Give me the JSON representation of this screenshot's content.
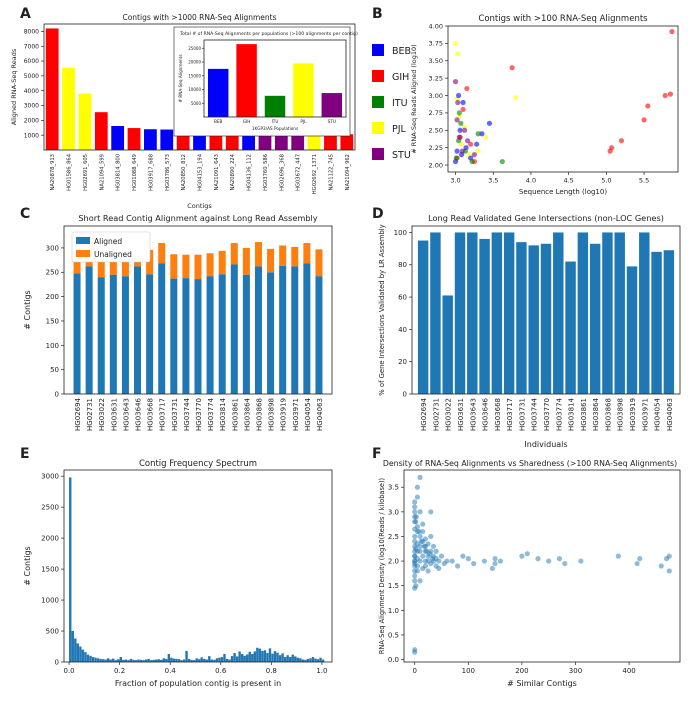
{
  "colors": {
    "BEB": "#0000ff",
    "GIH": "#ff0000",
    "ITU": "#008000",
    "PJL": "#ffff00",
    "STU": "#800080",
    "aligned": "#1f77b4",
    "unaligned": "#ff7f0e"
  },
  "chart_data": [
    {
      "panel": "A",
      "type": "bar",
      "title": "Contigs with >1000 RNA-Seq Alignments",
      "xlabel": "Contigs",
      "ylabel": "Aligned RNA-Seq Reads",
      "ylim": [
        0,
        8500
      ],
      "yticks": [
        1000,
        2000,
        3000,
        4000,
        5000,
        6000,
        7000,
        8000
      ],
      "categories": [
        "NA20878_913",
        "HG01586_864",
        "HG02691_605",
        "NA21094_599",
        "HG03814_800",
        "HG01088_649",
        "HG03917_688",
        "HG03786_573",
        "NA20850_812",
        "HG04153_194",
        "NA21091_643",
        "NA20890_224",
        "HG04136_112",
        "HG03760_586",
        "HG02696_368",
        "HG03672_447",
        "HG02692_1371",
        "NA21122_745",
        "NA21094_962"
      ],
      "values": [
        8200,
        5550,
        3800,
        2550,
        1620,
        1480,
        1400,
        1380,
        1220,
        1200,
        1190,
        1180,
        1170,
        1160,
        1150,
        1140,
        1100,
        1080,
        1060
      ],
      "bar_groups": [
        "GIH",
        "PJL",
        "PJL",
        "GIH",
        "BEB",
        "GIH",
        "BEB",
        "BEB",
        "GIH",
        "BEB",
        "GIH",
        "GIH",
        "BEB",
        "STU",
        "STU",
        "STU",
        "PJL",
        "GIH",
        "GIH"
      ],
      "inset": {
        "title": "Total # of RNA-Seq Alignments per populations (>100 alignments per contig)",
        "xlabel": "1KGP3/AS Populations",
        "ylabel": "# RNA-Seq Alignments",
        "ylim": [
          0,
          28000
        ],
        "yticks": [
          5000,
          10000,
          15000,
          20000,
          25000
        ],
        "categories": [
          "BEB",
          "GIH",
          "ITU",
          "PJL",
          "STU"
        ],
        "values": [
          17500,
          26500,
          7700,
          19500,
          8700
        ]
      },
      "legend": {
        "entries": [
          "BEB",
          "GIH",
          "ITU",
          "PJL",
          "STU"
        ]
      }
    },
    {
      "panel": "B",
      "type": "scatter",
      "title": "Contigs with >100 RNA-Seq Alignments",
      "xlabel": "Sequence Length (log10)",
      "ylabel": "# RNA-Seq Reads Aligned (log10)",
      "xlim": [
        2.9,
        5.95
      ],
      "ylim": [
        1.9,
        4.0
      ],
      "xticks": [
        3.0,
        3.5,
        4.0,
        4.5,
        5.0,
        5.5
      ],
      "yticks": [
        2.0,
        2.25,
        2.5,
        2.75,
        3.0,
        3.25,
        3.5,
        3.75,
        4.0
      ],
      "series": [
        {
          "name": "GIH",
          "x": [
            3.02,
            3.05,
            3.1,
            3.15,
            3.2,
            3.25,
            3.75,
            5.05,
            5.07,
            5.2,
            5.5,
            5.55,
            5.78,
            5.85,
            5.87
          ],
          "y": [
            2.1,
            2.4,
            2.8,
            3.1,
            2.3,
            2.05,
            3.4,
            2.2,
            2.25,
            2.35,
            2.65,
            2.85,
            3.0,
            3.02,
            3.92
          ]
        },
        {
          "name": "PJL",
          "x": [
            3.0,
            3.03,
            3.08,
            3.12,
            3.18,
            3.3,
            3.4,
            3.8,
            3.02,
            3.05
          ],
          "y": [
            3.75,
            3.6,
            2.3,
            2.55,
            2.15,
            2.2,
            2.4,
            2.97,
            2.95,
            2.7
          ]
        },
        {
          "name": "BEB",
          "x": [
            3.0,
            3.02,
            3.06,
            3.1,
            3.14,
            3.2,
            3.28,
            3.35,
            3.45,
            3.04,
            3.08
          ],
          "y": [
            2.05,
            2.2,
            2.5,
            2.9,
            2.25,
            2.1,
            2.3,
            2.45,
            2.6,
            3.0,
            2.15
          ]
        },
        {
          "name": "ITU",
          "x": [
            3.01,
            3.04,
            3.07,
            3.13,
            3.22,
            3.3,
            3.62,
            3.05
          ],
          "y": [
            2.1,
            2.35,
            2.6,
            2.2,
            2.05,
            2.45,
            2.05,
            2.75
          ]
        },
        {
          "name": "STU",
          "x": [
            3.0,
            3.03,
            3.06,
            3.09,
            3.16,
            3.25,
            3.02,
            3.12
          ],
          "y": [
            3.2,
            2.9,
            2.4,
            2.2,
            2.35,
            2.15,
            2.65,
            2.5
          ]
        }
      ]
    },
    {
      "panel": "C",
      "type": "bar",
      "title": "Short Read Contig Alignment against Long Read Assembly",
      "ylabel": "# Contigs",
      "ylim": [
        0,
        345
      ],
      "yticks": [
        0,
        50,
        100,
        150,
        200,
        250,
        300
      ],
      "categories": [
        "HG02694",
        "HG02731",
        "HG03022",
        "HG03631",
        "HG03643",
        "HG03646",
        "HG03668",
        "HG03717",
        "HG03731",
        "HG03744",
        "HG03770",
        "HG03774",
        "HG03814",
        "HG03861",
        "HG03864",
        "HG03868",
        "HG03898",
        "HG03919",
        "HG03971",
        "HG04054",
        "HG04063"
      ],
      "series": [
        {
          "name": "Aligned",
          "values": [
            248,
            262,
            240,
            245,
            242,
            262,
            246,
            268,
            237,
            238,
            236,
            242,
            246,
            266,
            245,
            262,
            250,
            263,
            262,
            268,
            242
          ]
        },
        {
          "name": "Unaligned",
          "values": [
            47,
            52,
            58,
            50,
            54,
            48,
            50,
            42,
            50,
            48,
            50,
            47,
            48,
            44,
            55,
            50,
            48,
            42,
            40,
            42,
            55
          ]
        }
      ],
      "legend": {
        "entries": [
          "Aligned",
          "Unaligned"
        ],
        "placement": "top-left"
      }
    },
    {
      "panel": "D",
      "type": "bar",
      "title": "Long Read Validated Gene Intersections (non-LOC Genes)",
      "xlabel": "Individuals",
      "ylabel": "% of Gene Intersections Validated by LR Assembly",
      "ylim": [
        0,
        104
      ],
      "yticks": [
        0,
        20,
        40,
        60,
        80,
        100
      ],
      "categories": [
        "HG02694",
        "HG02731",
        "HG03022",
        "HG03631",
        "HG03643",
        "HG03646",
        "HG03668",
        "HG03717",
        "HG03731",
        "HG03744",
        "HG03770",
        "HG03774",
        "HG03814",
        "HG03861",
        "HG03864",
        "HG03868",
        "HG03898",
        "HG03919",
        "HG03971",
        "HG04054",
        "HG04063"
      ],
      "values": [
        95,
        100,
        61,
        100,
        100,
        96,
        100,
        100,
        94,
        92,
        93,
        100,
        82,
        100,
        93,
        100,
        100,
        79,
        100,
        88,
        89
      ]
    },
    {
      "panel": "E",
      "type": "bar",
      "title": "Contig Frequency Spectrum",
      "xlabel": "Fraction of population contig is present in",
      "ylabel": "# Contigs",
      "xlim": [
        -0.02,
        1.04
      ],
      "ylim": [
        0,
        3100
      ],
      "xticks": [
        0.0,
        0.2,
        0.4,
        0.6,
        0.8,
        1.0
      ],
      "yticks": [
        0,
        500,
        1000,
        1500,
        2000,
        2500,
        3000
      ],
      "bin_width": 0.01,
      "values": [
        2980,
        500,
        380,
        300,
        250,
        200,
        160,
        120,
        100,
        80,
        70,
        60,
        50,
        45,
        40,
        60,
        40,
        55,
        30,
        45,
        80,
        35,
        40,
        30,
        50,
        35,
        30,
        40,
        35,
        30,
        40,
        50,
        30,
        35,
        40,
        45,
        35,
        60,
        50,
        130,
        70,
        55,
        50,
        45,
        30,
        40,
        180,
        50,
        35,
        30,
        60,
        45,
        75,
        50,
        40,
        95,
        40,
        35,
        60,
        70,
        80,
        130,
        50,
        40,
        95,
        145,
        90,
        170,
        130,
        100,
        120,
        165,
        130,
        170,
        230,
        215,
        180,
        190,
        145,
        220,
        135,
        175,
        150,
        110,
        140,
        80,
        110,
        80,
        120,
        90,
        70,
        60,
        40,
        35,
        50,
        60,
        80,
        55,
        45,
        70,
        40
      ]
    },
    {
      "panel": "F",
      "type": "scatter",
      "title": "Density of RNA-Seq Alignments vs Sharedness (>100 RNA-Seq Alignments)",
      "xlabel": "# Similar Contigs",
      "ylabel": "RNA-Seq Alignment Density (log10(Reads / kilobase))",
      "xlim": [
        -20,
        495
      ],
      "ylim": [
        -0.05,
        3.85
      ],
      "xticks": [
        0,
        100,
        200,
        300,
        400
      ],
      "yticks": [
        0.0,
        0.5,
        1.0,
        1.5,
        2.0,
        2.5,
        3.0,
        3.5
      ],
      "x": [
        0,
        0,
        0,
        0,
        0,
        0,
        0,
        0,
        0,
        0,
        0,
        0,
        0,
        0,
        0,
        0,
        0,
        0,
        0,
        0,
        0,
        0,
        5,
        5,
        5,
        5,
        5,
        5,
        5,
        5,
        5,
        10,
        10,
        10,
        10,
        10,
        10,
        10,
        15,
        15,
        15,
        15,
        15,
        20,
        20,
        20,
        20,
        20,
        25,
        25,
        25,
        25,
        30,
        30,
        30,
        30,
        35,
        35,
        35,
        40,
        40,
        40,
        45,
        45,
        50,
        55,
        60,
        70,
        80,
        90,
        100,
        110,
        130,
        145,
        150,
        150,
        160,
        200,
        210,
        230,
        250,
        270,
        280,
        310,
        380,
        415,
        420,
        460,
        470,
        475,
        475,
        2,
        2,
        2,
        3,
        8,
        12,
        18,
        22,
        28,
        33
      ],
      "y": [
        0.15,
        0.2,
        1.45,
        1.6,
        1.8,
        1.9,
        2.0,
        2.1,
        2.2,
        2.3,
        2.5,
        2.65,
        2.8,
        2.9,
        3.0,
        3.1,
        3.2,
        2.0,
        1.7,
        2.4,
        1.95,
        2.1,
        3.3,
        3.5,
        2.6,
        2.2,
        1.8,
        2.05,
        1.9,
        2.7,
        2.35,
        3.7,
        3.0,
        2.5,
        2.2,
        1.6,
        2.0,
        2.3,
        2.4,
        2.1,
        1.85,
        2.6,
        2.75,
        2.0,
        2.2,
        2.3,
        1.9,
        2.45,
        2.1,
        2.0,
        2.35,
        1.8,
        2.5,
        2.2,
        1.95,
        3.0,
        2.1,
        2.0,
        2.3,
        2.2,
        1.9,
        2.05,
        2.0,
        1.85,
        2.1,
        1.95,
        2.0,
        2.0,
        1.9,
        2.1,
        2.05,
        1.95,
        2.0,
        1.85,
        1.95,
        2.05,
        2.0,
        2.1,
        2.15,
        2.05,
        2.0,
        2.05,
        1.95,
        2.0,
        2.1,
        1.95,
        2.05,
        1.9,
        2.05,
        1.8,
        2.1,
        2.8,
        2.25,
        1.5,
        2.9,
        2.6,
        2.4,
        2.3,
        2.2,
        2.15,
        2.05
      ]
    }
  ]
}
